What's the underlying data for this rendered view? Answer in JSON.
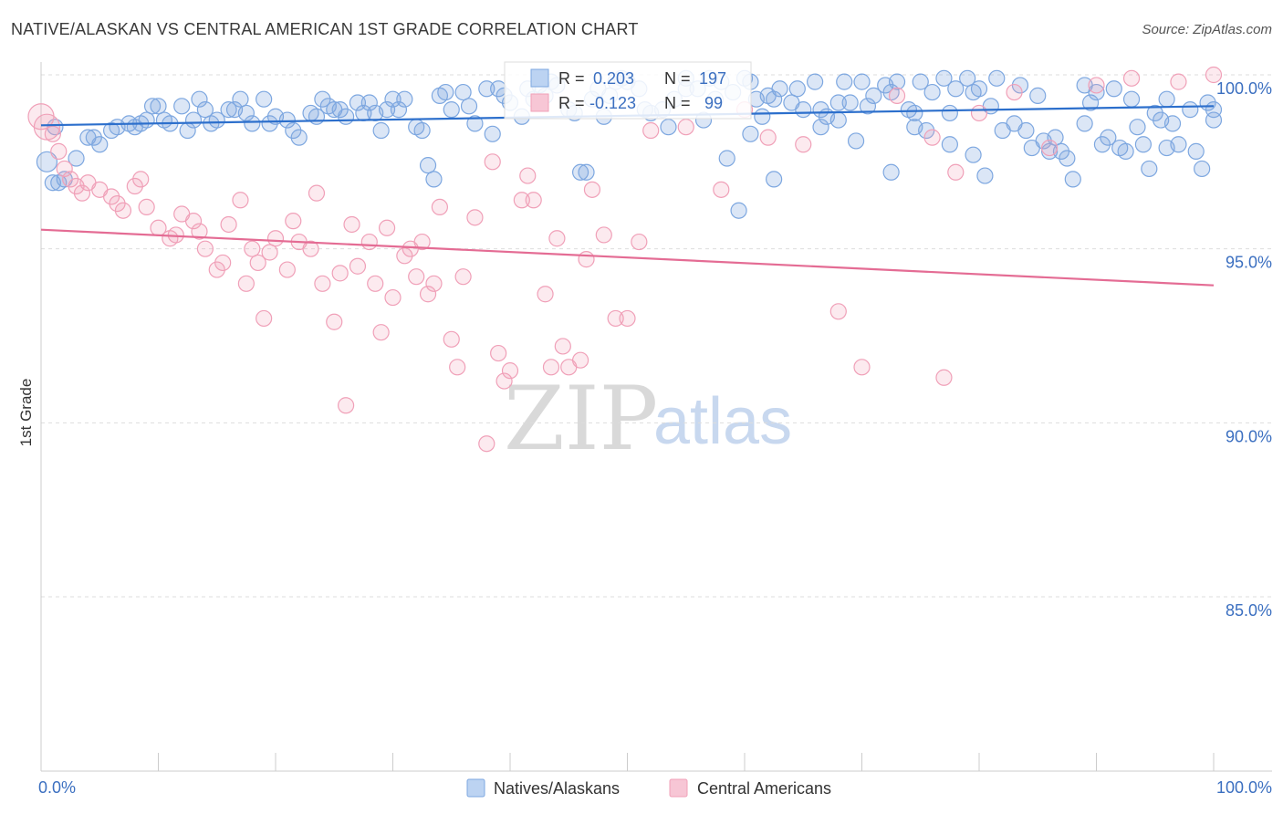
{
  "title": "NATIVE/ALASKAN VS CENTRAL AMERICAN 1ST GRADE CORRELATION CHART",
  "source": "Source: ZipAtlas.com",
  "watermark": {
    "zip": "ZIP",
    "atlas": "atlas"
  },
  "legend_box": {
    "r_label": "R =",
    "n_label": "N =",
    "rows": [
      {
        "series": "Natives/Alaskans",
        "r": "0.203",
        "n": "197",
        "color": "#7da7e0"
      },
      {
        "series": "Central Americans",
        "r": "-0.123",
        "n": "99",
        "color": "#f0a0b8"
      }
    ]
  },
  "bottom_legend": [
    "Natives/Alaskans",
    "Central Americans"
  ],
  "chart_data": {
    "type": "scatter",
    "title": "NATIVE/ALASKAN VS CENTRAL AMERICAN 1ST GRADE CORRELATION CHART",
    "xlabel": "",
    "ylabel": "1st Grade",
    "xlim": [
      0,
      100
    ],
    "ylim": [
      80.3,
      100.8
    ],
    "x_tick_labels": [
      "0.0%",
      "100.0%"
    ],
    "y_ticks": [
      100,
      95,
      90,
      85
    ],
    "y_tick_labels": [
      "100.0%",
      "95.0%",
      "90.0%",
      "85.0%"
    ],
    "grid": true,
    "legend_position": "top-center",
    "series": [
      {
        "name": "Natives/Alaskans",
        "color": "#7da7e0",
        "line_color": "#2c6fcc",
        "trend": {
          "x": [
            0,
            100
          ],
          "y": [
            98.55,
            99.1
          ]
        },
        "points": [
          [
            0.5,
            97.5
          ],
          [
            1,
            96.9
          ],
          [
            1.2,
            98.5
          ],
          [
            1.5,
            96.9
          ],
          [
            2,
            97.0
          ],
          [
            3,
            97.6
          ],
          [
            4,
            98.2
          ],
          [
            4.5,
            98.2
          ],
          [
            5,
            98.0
          ],
          [
            6,
            98.4
          ],
          [
            6.5,
            98.5
          ],
          [
            7.5,
            98.6
          ],
          [
            8,
            98.5
          ],
          [
            8.5,
            98.6
          ],
          [
            9,
            98.7
          ],
          [
            9.5,
            99.1
          ],
          [
            10,
            99.1
          ],
          [
            10.5,
            98.7
          ],
          [
            11,
            98.6
          ],
          [
            12,
            99.1
          ],
          [
            12.5,
            98.4
          ],
          [
            13,
            98.7
          ],
          [
            13.5,
            99.3
          ],
          [
            14,
            99.0
          ],
          [
            14.5,
            98.6
          ],
          [
            15,
            98.7
          ],
          [
            16,
            99.0
          ],
          [
            16.5,
            99.0
          ],
          [
            17,
            99.3
          ],
          [
            17.5,
            98.9
          ],
          [
            18,
            98.6
          ],
          [
            19,
            99.3
          ],
          [
            19.5,
            98.6
          ],
          [
            20,
            98.8
          ],
          [
            21,
            98.7
          ],
          [
            21.5,
            98.4
          ],
          [
            22,
            98.2
          ],
          [
            23,
            98.9
          ],
          [
            23.5,
            98.8
          ],
          [
            24,
            99.3
          ],
          [
            24.5,
            99.1
          ],
          [
            25,
            99.0
          ],
          [
            25.5,
            99.0
          ],
          [
            26,
            98.8
          ],
          [
            27,
            99.2
          ],
          [
            27.5,
            98.9
          ],
          [
            28,
            99.2
          ],
          [
            28.5,
            98.9
          ],
          [
            29,
            98.4
          ],
          [
            29.5,
            99.0
          ],
          [
            30,
            99.3
          ],
          [
            30.5,
            99.0
          ],
          [
            31,
            99.3
          ],
          [
            32,
            98.5
          ],
          [
            32.5,
            98.4
          ],
          [
            33,
            97.4
          ],
          [
            33.5,
            97.0
          ],
          [
            34,
            99.4
          ],
          [
            34.5,
            99.5
          ],
          [
            35,
            99.0
          ],
          [
            36,
            99.5
          ],
          [
            36.5,
            99.1
          ],
          [
            37,
            98.6
          ],
          [
            38,
            99.6
          ],
          [
            38.5,
            98.3
          ],
          [
            39,
            99.6
          ],
          [
            39.5,
            99.4
          ],
          [
            40,
            99.2
          ],
          [
            41,
            98.8
          ],
          [
            41.5,
            99.6
          ],
          [
            42,
            99.3
          ],
          [
            42.5,
            99.7
          ],
          [
            43,
            99.4
          ],
          [
            43.5,
            99.8
          ],
          [
            44,
            99.7
          ],
          [
            45,
            99.0
          ],
          [
            45.5,
            98.9
          ],
          [
            46,
            97.2
          ],
          [
            46.5,
            97.2
          ],
          [
            47,
            99.3
          ],
          [
            47.5,
            99.6
          ],
          [
            48,
            98.8
          ],
          [
            48.5,
            99.4
          ],
          [
            49,
            99.8
          ],
          [
            49.5,
            99.9
          ],
          [
            50,
            99.8
          ],
          [
            51,
            99.6
          ],
          [
            51.5,
            99.0
          ],
          [
            52,
            98.9
          ],
          [
            53,
            99.0
          ],
          [
            53.5,
            98.5
          ],
          [
            54,
            99.3
          ],
          [
            55,
            99.9
          ],
          [
            56,
            99.6
          ],
          [
            57,
            99.9
          ],
          [
            57.5,
            99.3
          ],
          [
            58,
            99.8
          ],
          [
            59,
            99.5
          ],
          [
            60,
            99.9
          ],
          [
            60.5,
            99.8
          ],
          [
            61,
            99.3
          ],
          [
            61.5,
            98.8
          ],
          [
            62,
            99.4
          ],
          [
            62.5,
            99.3
          ],
          [
            63,
            99.6
          ],
          [
            64,
            99.2
          ],
          [
            64.5,
            99.6
          ],
          [
            65,
            99.0
          ],
          [
            66,
            99.8
          ],
          [
            66.5,
            99.0
          ],
          [
            67,
            98.8
          ],
          [
            68,
            99.2
          ],
          [
            68.5,
            99.8
          ],
          [
            69,
            99.2
          ],
          [
            70,
            99.8
          ],
          [
            70.5,
            99.1
          ],
          [
            71,
            99.4
          ],
          [
            72,
            99.7
          ],
          [
            72.5,
            99.5
          ],
          [
            73,
            99.8
          ],
          [
            74,
            99.0
          ],
          [
            74.5,
            98.9
          ],
          [
            75,
            99.8
          ],
          [
            75.5,
            98.4
          ],
          [
            76,
            99.5
          ],
          [
            77,
            99.9
          ],
          [
            77.5,
            98.9
          ],
          [
            78,
            99.6
          ],
          [
            79,
            99.9
          ],
          [
            79.5,
            99.5
          ],
          [
            80,
            99.6
          ],
          [
            81,
            99.1
          ],
          [
            81.5,
            99.9
          ],
          [
            82,
            98.4
          ],
          [
            83,
            98.6
          ],
          [
            83.5,
            99.7
          ],
          [
            84,
            98.4
          ],
          [
            85,
            99.4
          ],
          [
            85.5,
            98.1
          ],
          [
            86,
            97.8
          ],
          [
            87,
            97.8
          ],
          [
            88,
            97.0
          ],
          [
            89,
            99.7
          ],
          [
            89.5,
            99.2
          ],
          [
            90,
            99.5
          ],
          [
            91,
            98.2
          ],
          [
            91.5,
            99.6
          ],
          [
            92,
            97.9
          ],
          [
            93,
            99.3
          ],
          [
            93.5,
            98.5
          ],
          [
            94,
            98.0
          ],
          [
            95,
            98.9
          ],
          [
            95.5,
            98.7
          ],
          [
            96,
            99.3
          ],
          [
            96.5,
            98.6
          ],
          [
            97,
            98.0
          ],
          [
            98,
            99.0
          ],
          [
            98.5,
            97.8
          ],
          [
            99,
            97.3
          ],
          [
            99.5,
            99.2
          ],
          [
            100,
            98.7
          ],
          [
            100,
            99.0
          ],
          [
            55,
            99.6
          ],
          [
            56.5,
            98.7
          ],
          [
            58.5,
            97.6
          ],
          [
            59.5,
            96.1
          ],
          [
            60.5,
            98.3
          ],
          [
            62.5,
            97.0
          ],
          [
            66.5,
            98.5
          ],
          [
            68,
            98.7
          ],
          [
            69.5,
            98.1
          ],
          [
            72.5,
            97.2
          ],
          [
            74.5,
            98.5
          ],
          [
            77.5,
            98.0
          ],
          [
            79.5,
            97.7
          ],
          [
            80.5,
            97.1
          ],
          [
            84.5,
            97.9
          ],
          [
            86.5,
            98.2
          ],
          [
            87.5,
            97.6
          ],
          [
            89,
            98.6
          ],
          [
            90.5,
            98.0
          ],
          [
            92.5,
            97.8
          ],
          [
            94.5,
            97.3
          ],
          [
            96,
            97.9
          ]
        ]
      },
      {
        "name": "Central Americans",
        "color": "#f0a0b8",
        "line_color": "#e46c94",
        "trend": {
          "x": [
            0,
            100
          ],
          "y": [
            95.55,
            93.95
          ]
        },
        "points": [
          [
            0,
            98.8
          ],
          [
            0.5,
            98.5
          ],
          [
            1,
            98.3
          ],
          [
            1.5,
            97.8
          ],
          [
            2,
            97.3
          ],
          [
            2.5,
            97.0
          ],
          [
            3,
            96.8
          ],
          [
            3.5,
            96.6
          ],
          [
            4,
            96.9
          ],
          [
            5,
            96.7
          ],
          [
            6,
            96.5
          ],
          [
            6.5,
            96.3
          ],
          [
            7,
            96.1
          ],
          [
            8,
            96.8
          ],
          [
            8.5,
            97.0
          ],
          [
            9,
            96.2
          ],
          [
            10,
            95.6
          ],
          [
            11,
            95.3
          ],
          [
            11.5,
            95.4
          ],
          [
            12,
            96.0
          ],
          [
            13,
            95.8
          ],
          [
            13.5,
            95.5
          ],
          [
            14,
            95.0
          ],
          [
            15,
            94.4
          ],
          [
            15.5,
            94.6
          ],
          [
            16,
            95.7
          ],
          [
            17,
            96.4
          ],
          [
            17.5,
            94.0
          ],
          [
            18,
            95.0
          ],
          [
            18.5,
            94.6
          ],
          [
            19,
            93.0
          ],
          [
            19.5,
            94.9
          ],
          [
            20,
            95.3
          ],
          [
            21,
            94.4
          ],
          [
            21.5,
            95.8
          ],
          [
            22,
            95.2
          ],
          [
            23,
            95.0
          ],
          [
            23.5,
            96.6
          ],
          [
            24,
            94.0
          ],
          [
            25,
            92.9
          ],
          [
            25.5,
            94.3
          ],
          [
            26,
            90.5
          ],
          [
            26.5,
            95.7
          ],
          [
            27,
            94.5
          ],
          [
            28,
            95.2
          ],
          [
            28.5,
            94.0
          ],
          [
            29,
            92.6
          ],
          [
            29.5,
            95.6
          ],
          [
            30,
            93.6
          ],
          [
            31,
            94.8
          ],
          [
            31.5,
            95.0
          ],
          [
            32,
            94.2
          ],
          [
            32.5,
            95.2
          ],
          [
            33,
            93.7
          ],
          [
            33.5,
            94.0
          ],
          [
            34,
            96.2
          ],
          [
            35,
            92.4
          ],
          [
            35.5,
            91.6
          ],
          [
            36,
            94.2
          ],
          [
            37,
            95.9
          ],
          [
            38,
            89.4
          ],
          [
            38.5,
            97.5
          ],
          [
            39,
            92.0
          ],
          [
            39.5,
            91.2
          ],
          [
            40,
            91.5
          ],
          [
            41,
            96.4
          ],
          [
            41.5,
            97.1
          ],
          [
            42,
            96.4
          ],
          [
            43,
            93.7
          ],
          [
            43.5,
            91.6
          ],
          [
            44,
            95.3
          ],
          [
            44.5,
            92.2
          ],
          [
            45,
            91.6
          ],
          [
            46,
            91.8
          ],
          [
            46.5,
            94.7
          ],
          [
            47,
            96.7
          ],
          [
            48,
            95.4
          ],
          [
            49,
            93.0
          ],
          [
            50,
            93.0
          ],
          [
            51,
            95.2
          ],
          [
            52,
            98.4
          ],
          [
            55,
            98.5
          ],
          [
            58,
            96.7
          ],
          [
            60,
            99.0
          ],
          [
            62,
            98.2
          ],
          [
            65,
            98.0
          ],
          [
            68,
            93.2
          ],
          [
            70,
            91.6
          ],
          [
            73,
            99.4
          ],
          [
            76,
            98.2
          ],
          [
            78,
            97.2
          ],
          [
            80,
            98.9
          ],
          [
            83,
            99.5
          ],
          [
            86,
            97.9
          ],
          [
            90,
            99.7
          ],
          [
            93,
            99.9
          ],
          [
            97,
            99.8
          ],
          [
            100,
            100.0
          ],
          [
            77,
            91.3
          ]
        ]
      }
    ]
  }
}
